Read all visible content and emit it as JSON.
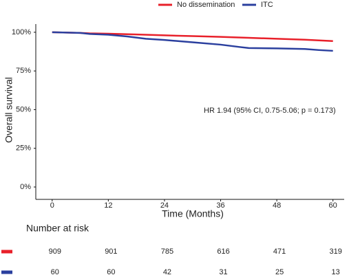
{
  "chart_data": {
    "type": "line",
    "y_label": "Overall survival",
    "x_label": "Time (Months)",
    "annotation": "HR 1.94 (95% CI, 0.75-5.06; p = 0.173)",
    "legend": "top",
    "xlim": [
      -3.5,
      62.4
    ],
    "ylim": [
      -8,
      105.3
    ],
    "xticks": [
      0,
      12,
      24,
      36,
      48,
      60
    ],
    "yticks": [
      {
        "value": 0,
        "label": "0%"
      },
      {
        "value": 25,
        "label": "25%"
      },
      {
        "value": 50,
        "label": "50%"
      },
      {
        "value": 75,
        "label": "75%"
      },
      {
        "value": 100,
        "label": "100%"
      }
    ],
    "series": [
      {
        "name": "No dissemination",
        "color": "#e8202a",
        "x": [
          0,
          6,
          8,
          12,
          18,
          24,
          30,
          36,
          42,
          48,
          54,
          60
        ],
        "values": [
          100,
          99.6,
          99.3,
          99.1,
          98.6,
          98,
          97.5,
          97,
          96.4,
          95.8,
          95.2,
          94.3
        ]
      },
      {
        "name": "ITC",
        "color": "#2a3f9e",
        "x": [
          0,
          6,
          8,
          12,
          16,
          20,
          24,
          30,
          36,
          40,
          42,
          48,
          54,
          57,
          60
        ],
        "values": [
          100,
          99.6,
          98.9,
          98.4,
          97.3,
          95.8,
          95,
          93.5,
          92,
          90.5,
          89.8,
          89.6,
          89.2,
          88.5,
          88
        ]
      }
    ],
    "risk_table": {
      "title": "Number at risk",
      "rows": [
        {
          "values": [
            909,
            901,
            785,
            616,
            471,
            319
          ]
        },
        {
          "values": [
            60,
            60,
            42,
            31,
            25,
            13
          ]
        }
      ]
    }
  }
}
